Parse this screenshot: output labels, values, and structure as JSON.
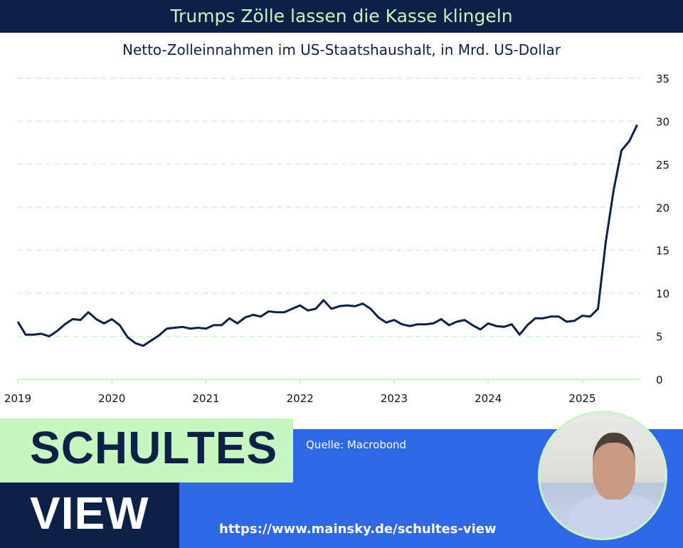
{
  "header": {
    "title": "Trumps Zölle lassen die Kasse klingeln"
  },
  "footer": {
    "brand_line1": "SCHULTES",
    "brand_line2": "VIEW",
    "source": "Quelle: Macrobond",
    "url": "https://www.mainsky.de/schultes-view"
  },
  "colors": {
    "navy": "#0d2148",
    "green": "#c7f7c0",
    "blue": "#2f68e6",
    "line": "#0d2148",
    "grid": "#c7f7c0"
  },
  "chart_data": {
    "type": "line",
    "title": "Netto-Zolleinnahmen im US-Staatshaushalt, in Mrd. US-Dollar",
    "xlabel": "",
    "ylabel": "",
    "ylim": [
      0,
      35
    ],
    "yticks": [
      0,
      5,
      10,
      15,
      20,
      25,
      30,
      35
    ],
    "xticks": [
      "2019",
      "2020",
      "2021",
      "2022",
      "2023",
      "2024",
      "2025"
    ],
    "x_start": "2019-01",
    "frequency": "monthly",
    "grid": true,
    "y_axis_side": "right",
    "series": [
      {
        "name": "Netto-Zolleinnahmen",
        "values": [
          6.7,
          5.2,
          5.2,
          5.3,
          5.0,
          5.6,
          6.4,
          7.0,
          6.9,
          7.8,
          7.0,
          6.5,
          7.0,
          6.3,
          4.9,
          4.2,
          3.9,
          4.5,
          5.1,
          5.9,
          6.0,
          6.1,
          5.9,
          6.0,
          5.9,
          6.3,
          6.3,
          7.1,
          6.5,
          7.2,
          7.5,
          7.3,
          7.9,
          7.8,
          7.8,
          8.2,
          8.6,
          8.0,
          8.2,
          9.2,
          8.2,
          8.5,
          8.6,
          8.5,
          8.8,
          8.2,
          7.2,
          6.6,
          6.9,
          6.4,
          6.2,
          6.4,
          6.4,
          6.5,
          7.0,
          6.3,
          6.7,
          6.9,
          6.3,
          5.8,
          6.5,
          6.2,
          6.1,
          6.4,
          5.2,
          6.3,
          7.1,
          7.1,
          7.3,
          7.3,
          6.7,
          6.8,
          7.4,
          7.3,
          8.2,
          16.0,
          22.0,
          26.6,
          27.7,
          29.6
        ]
      }
    ]
  }
}
